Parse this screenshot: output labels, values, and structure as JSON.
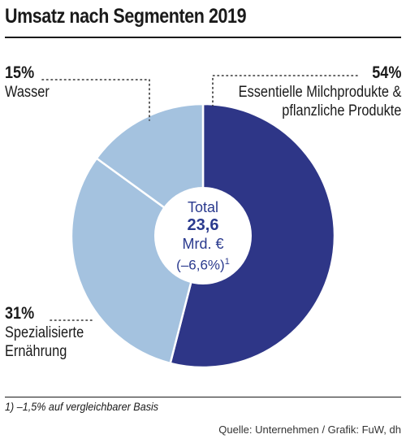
{
  "title": "Umsatz nach Segmenten 2019",
  "center": {
    "line1": "Total",
    "line2": "23,6",
    "line3": "Mrd. €",
    "line4": "(–6,6%)",
    "line4_sup": "1"
  },
  "footnote": "1) –1,5% auf vergleichbarer Basis",
  "source": "Quelle: Unternehmen / Grafik: FuW, dh",
  "chart_data": {
    "type": "pie",
    "title": "Umsatz nach Segmenten 2019",
    "slices": [
      {
        "label_lines": [
          "Essentielle Milchprodukte &",
          "pflanzliche Produkte"
        ],
        "pct_label": "54%",
        "value": 54,
        "color": "#2e3687"
      },
      {
        "label_lines": [
          "Spezialisierte",
          "Ernährung"
        ],
        "pct_label": "31%",
        "value": 31,
        "color": "#a4c2df"
      },
      {
        "label_lines": [
          "Wasser"
        ],
        "pct_label": "15%",
        "value": 15,
        "color": "#a4c2df"
      }
    ],
    "total": "23,6",
    "unit": "Mrd. €",
    "change": "(–6,6%)"
  }
}
